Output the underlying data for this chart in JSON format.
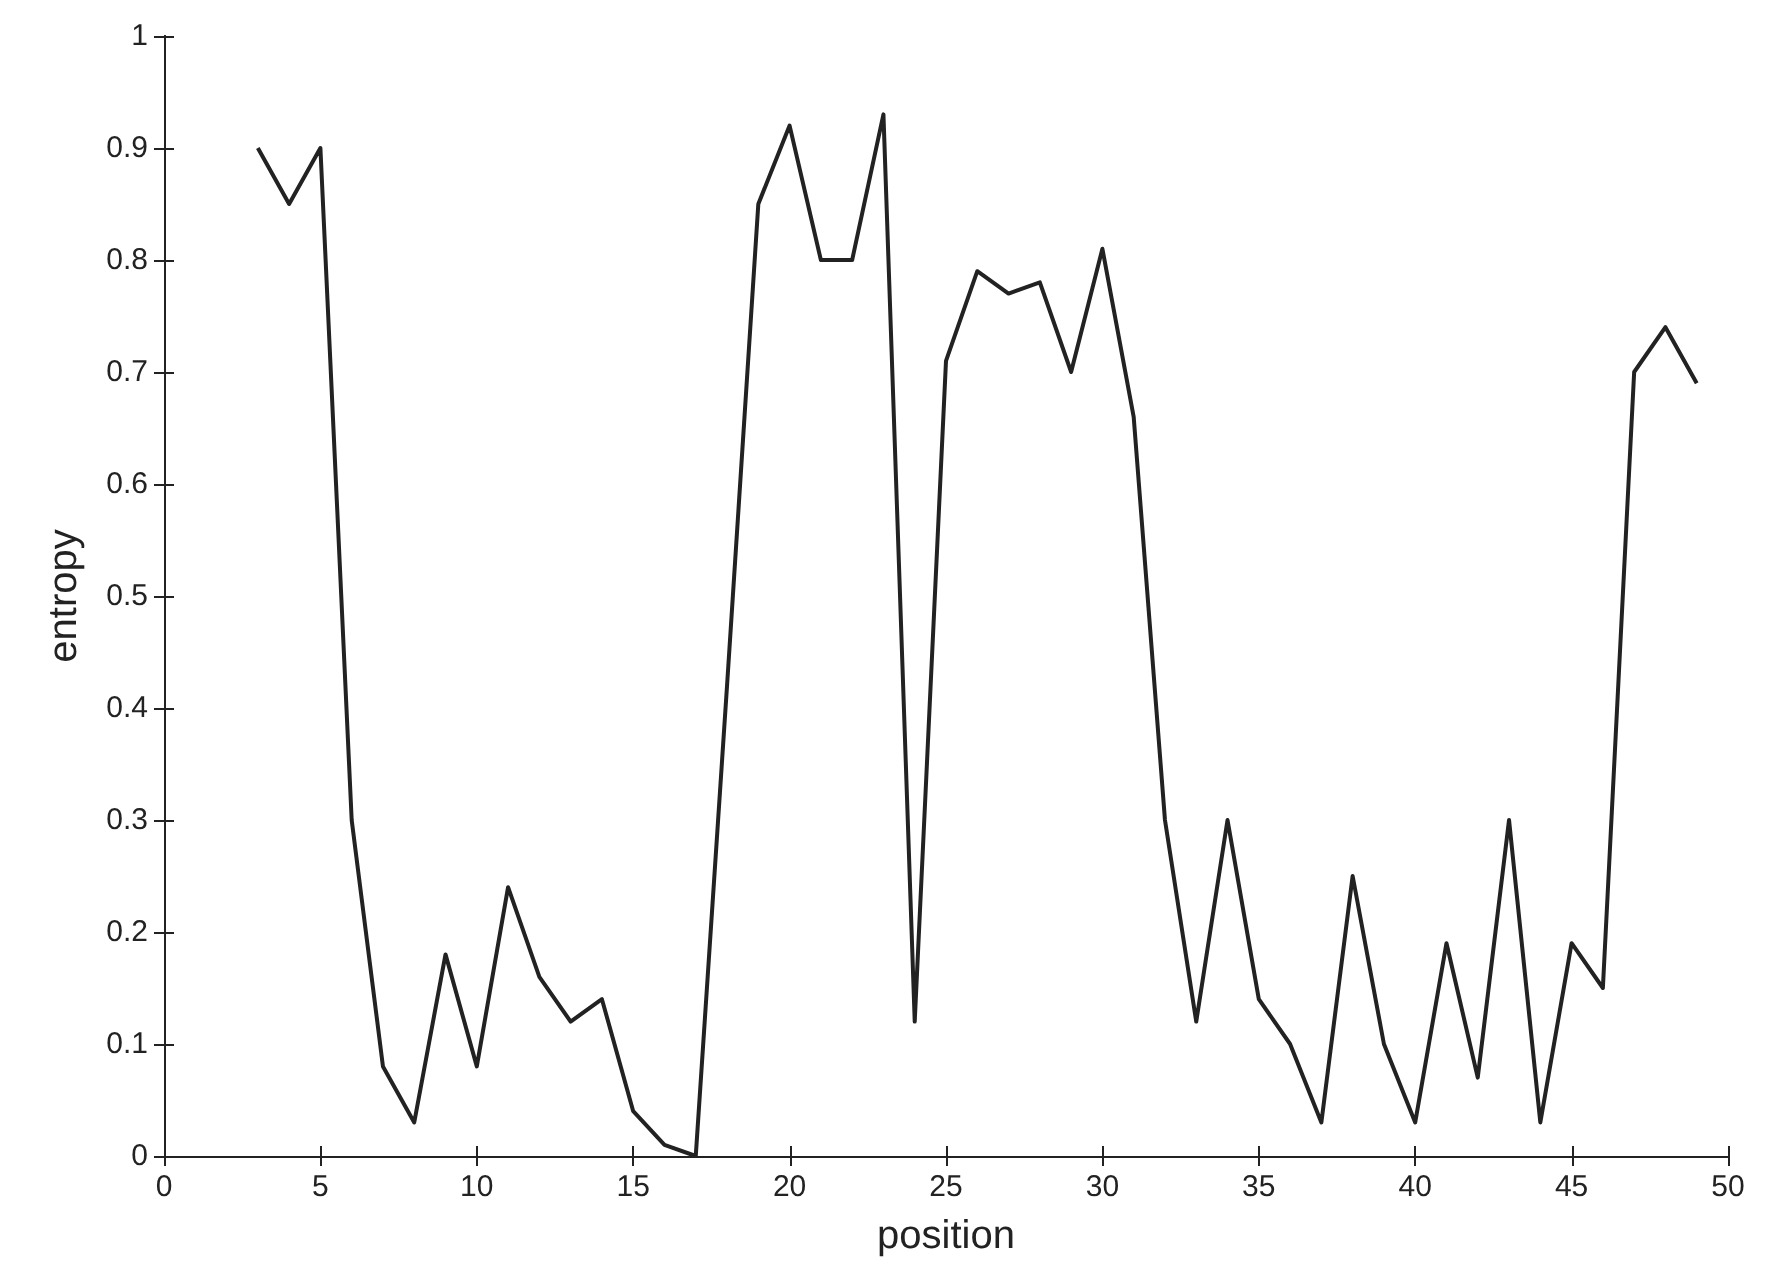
{
  "chart_data": {
    "type": "line",
    "xlabel": "position",
    "ylabel": "entropy",
    "x": [
      3,
      4,
      5,
      6,
      7,
      8,
      9,
      10,
      11,
      12,
      13,
      14,
      15,
      16,
      17,
      18,
      19,
      20,
      21,
      22,
      23,
      24,
      25,
      26,
      27,
      28,
      29,
      30,
      31,
      32,
      33,
      34,
      35,
      36,
      37,
      38,
      39,
      40,
      41,
      42,
      43,
      44,
      45,
      46,
      47,
      48,
      49
    ],
    "values": [
      0.9,
      0.85,
      0.9,
      0.3,
      0.08,
      0.03,
      0.18,
      0.08,
      0.24,
      0.16,
      0.12,
      0.14,
      0.04,
      0.01,
      0.0,
      0.42,
      0.85,
      0.92,
      0.8,
      0.8,
      0.93,
      0.12,
      0.71,
      0.79,
      0.77,
      0.78,
      0.7,
      0.81,
      0.66,
      0.3,
      0.12,
      0.3,
      0.14,
      0.1,
      0.03,
      0.25,
      0.1,
      0.03,
      0.19,
      0.07,
      0.3,
      0.03,
      0.19,
      0.15,
      0.7,
      0.74,
      0.69
    ],
    "color": "#222222",
    "xlim": [
      0,
      50
    ],
    "xticks": [
      0,
      5,
      10,
      15,
      20,
      25,
      30,
      35,
      40,
      45,
      50
    ],
    "ylim": [
      0,
      1
    ],
    "yticks": [
      0,
      0.1,
      0.2,
      0.3,
      0.4,
      0.5,
      0.6,
      0.7,
      0.8,
      0.9,
      1
    ],
    "grid": false,
    "marker": "none",
    "line_style": "solid"
  }
}
